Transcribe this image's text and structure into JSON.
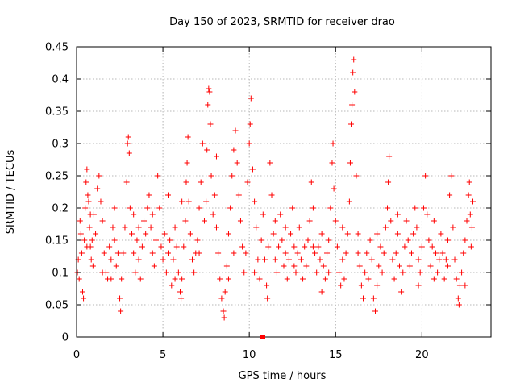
{
  "chart_data": {
    "type": "scatter",
    "title": "Day 150 of 2023, SRMTID for receiver drao",
    "xlabel": "GPS time / hours",
    "ylabel": "SRMTID / TECUs",
    "xlim": [
      0,
      24
    ],
    "ylim": [
      0,
      0.45
    ],
    "xticks": [
      0,
      5,
      10,
      15,
      20
    ],
    "xtick_labels": [
      "0",
      "5",
      "10",
      "15",
      "20"
    ],
    "yticks": [
      0,
      0.05,
      0.1,
      0.15,
      0.2,
      0.25,
      0.3,
      0.35,
      0.4,
      0.45
    ],
    "ytick_labels": [
      "0",
      "0.05",
      "0.1",
      "0.15",
      "0.2",
      "0.25",
      "0.3",
      "0.35",
      "0.4",
      "0.45"
    ],
    "grid": true,
    "marker": "+",
    "color": "#ff0000",
    "points": [
      [
        0.05,
        0.1
      ],
      [
        0.1,
        0.12
      ],
      [
        0.15,
        0.09
      ],
      [
        0.2,
        0.18
      ],
      [
        0.25,
        0.16
      ],
      [
        0.3,
        0.13
      ],
      [
        0.35,
        0.07
      ],
      [
        0.4,
        0.06
      ],
      [
        0.45,
        0.15
      ],
      [
        0.5,
        0.2
      ],
      [
        0.55,
        0.24
      ],
      [
        0.6,
        0.26
      ],
      [
        0.65,
        0.22
      ],
      [
        0.7,
        0.21
      ],
      [
        0.75,
        0.17
      ],
      [
        0.8,
        0.14
      ],
      [
        0.85,
        0.12
      ],
      [
        0.9,
        0.15
      ],
      [
        0.95,
        0.11
      ],
      [
        1.0,
        0.19
      ],
      [
        1.1,
        0.16
      ],
      [
        1.2,
        0.23
      ],
      [
        1.3,
        0.25
      ],
      [
        1.4,
        0.21
      ],
      [
        1.5,
        0.18
      ],
      [
        1.6,
        0.13
      ],
      [
        1.7,
        0.1
      ],
      [
        1.8,
        0.09
      ],
      [
        1.9,
        0.14
      ],
      [
        2.0,
        0.12
      ],
      [
        2.1,
        0.17
      ],
      [
        2.2,
        0.15
      ],
      [
        2.3,
        0.11
      ],
      [
        2.4,
        0.13
      ],
      [
        2.5,
        0.06
      ],
      [
        2.55,
        0.04
      ],
      [
        2.6,
        0.09
      ],
      [
        2.7,
        0.13
      ],
      [
        2.8,
        0.17
      ],
      [
        2.9,
        0.24
      ],
      [
        2.95,
        0.3
      ],
      [
        3.0,
        0.31
      ],
      [
        3.05,
        0.285
      ],
      [
        3.1,
        0.2
      ],
      [
        3.2,
        0.16
      ],
      [
        3.3,
        0.13
      ],
      [
        3.4,
        0.1
      ],
      [
        3.5,
        0.15
      ],
      [
        3.6,
        0.12
      ],
      [
        3.7,
        0.09
      ],
      [
        3.8,
        0.14
      ],
      [
        3.9,
        0.18
      ],
      [
        4.0,
        0.16
      ],
      [
        4.1,
        0.2
      ],
      [
        4.2,
        0.22
      ],
      [
        4.3,
        0.17
      ],
      [
        4.4,
        0.13
      ],
      [
        4.5,
        0.11
      ],
      [
        4.6,
        0.15
      ],
      [
        4.7,
        0.25
      ],
      [
        4.8,
        0.2
      ],
      [
        4.9,
        0.14
      ],
      [
        5.0,
        0.12
      ],
      [
        5.1,
        0.16
      ],
      [
        5.2,
        0.1
      ],
      [
        5.3,
        0.13
      ],
      [
        5.4,
        0.15
      ],
      [
        5.5,
        0.08
      ],
      [
        5.6,
        0.12
      ],
      [
        5.7,
        0.17
      ],
      [
        5.8,
        0.14
      ],
      [
        5.9,
        0.1
      ],
      [
        6.0,
        0.07
      ],
      [
        6.05,
        0.06
      ],
      [
        6.1,
        0.09
      ],
      [
        6.2,
        0.14
      ],
      [
        6.3,
        0.18
      ],
      [
        6.35,
        0.24
      ],
      [
        6.4,
        0.27
      ],
      [
        6.45,
        0.31
      ],
      [
        6.5,
        0.21
      ],
      [
        6.6,
        0.16
      ],
      [
        6.7,
        0.12
      ],
      [
        6.8,
        0.1
      ],
      [
        6.9,
        0.13
      ],
      [
        7.0,
        0.15
      ],
      [
        7.1,
        0.2
      ],
      [
        7.2,
        0.24
      ],
      [
        7.3,
        0.3
      ],
      [
        7.4,
        0.18
      ],
      [
        7.5,
        0.21
      ],
      [
        7.55,
        0.29
      ],
      [
        7.6,
        0.36
      ],
      [
        7.65,
        0.385
      ],
      [
        7.7,
        0.38
      ],
      [
        7.75,
        0.33
      ],
      [
        7.8,
        0.25
      ],
      [
        7.9,
        0.19
      ],
      [
        8.0,
        0.22
      ],
      [
        8.1,
        0.17
      ],
      [
        8.2,
        0.13
      ],
      [
        8.3,
        0.09
      ],
      [
        8.4,
        0.06
      ],
      [
        8.5,
        0.04
      ],
      [
        8.55,
        0.03
      ],
      [
        8.6,
        0.07
      ],
      [
        8.7,
        0.11
      ],
      [
        8.8,
        0.16
      ],
      [
        8.9,
        0.2
      ],
      [
        9.0,
        0.25
      ],
      [
        9.1,
        0.29
      ],
      [
        9.2,
        0.32
      ],
      [
        9.3,
        0.27
      ],
      [
        9.4,
        0.22
      ],
      [
        9.5,
        0.18
      ],
      [
        9.6,
        0.14
      ],
      [
        9.7,
        0.1
      ],
      [
        9.8,
        0.13
      ],
      [
        9.9,
        0.24
      ],
      [
        10.0,
        0.3
      ],
      [
        10.05,
        0.33
      ],
      [
        10.1,
        0.37
      ],
      [
        10.2,
        0.26
      ],
      [
        10.3,
        0.21
      ],
      [
        10.4,
        0.17
      ],
      [
        10.5,
        0.12
      ],
      [
        10.6,
        0.09
      ],
      [
        10.7,
        0.15
      ],
      [
        10.8,
        0.19
      ],
      [
        10.9,
        0.12
      ],
      [
        11.0,
        0.08
      ],
      [
        11.05,
        0.06
      ],
      [
        11.1,
        0.14
      ],
      [
        11.2,
        0.27
      ],
      [
        11.3,
        0.22
      ],
      [
        11.4,
        0.16
      ],
      [
        11.5,
        0.12
      ],
      [
        11.6,
        0.1
      ],
      [
        11.7,
        0.14
      ],
      [
        11.8,
        0.19
      ],
      [
        11.9,
        0.15
      ],
      [
        12.0,
        0.11
      ],
      [
        12.1,
        0.13
      ],
      [
        12.2,
        0.09
      ],
      [
        12.3,
        0.12
      ],
      [
        12.4,
        0.16
      ],
      [
        12.5,
        0.2
      ],
      [
        12.6,
        0.14
      ],
      [
        12.7,
        0.1
      ],
      [
        12.8,
        0.13
      ],
      [
        12.9,
        0.17
      ],
      [
        13.0,
        0.12
      ],
      [
        13.1,
        0.09
      ],
      [
        13.2,
        0.14
      ],
      [
        13.3,
        0.11
      ],
      [
        13.4,
        0.15
      ],
      [
        13.5,
        0.18
      ],
      [
        13.6,
        0.24
      ],
      [
        13.7,
        0.2
      ],
      [
        13.8,
        0.13
      ],
      [
        13.9,
        0.1
      ],
      [
        14.0,
        0.14
      ],
      [
        14.1,
        0.12
      ],
      [
        14.2,
        0.16
      ],
      [
        14.3,
        0.11
      ],
      [
        14.4,
        0.09
      ],
      [
        14.5,
        0.13
      ],
      [
        14.6,
        0.15
      ],
      [
        14.7,
        0.2
      ],
      [
        14.8,
        0.27
      ],
      [
        14.85,
        0.3
      ],
      [
        14.9,
        0.23
      ],
      [
        15.0,
        0.18
      ],
      [
        15.1,
        0.14
      ],
      [
        15.2,
        0.1
      ],
      [
        15.3,
        0.08
      ],
      [
        15.4,
        0.12
      ],
      [
        15.5,
        0.09
      ],
      [
        15.6,
        0.13
      ],
      [
        15.7,
        0.16
      ],
      [
        15.8,
        0.21
      ],
      [
        15.85,
        0.27
      ],
      [
        15.9,
        0.33
      ],
      [
        15.95,
        0.36
      ],
      [
        16.0,
        0.41
      ],
      [
        16.05,
        0.43
      ],
      [
        16.1,
        0.38
      ],
      [
        16.2,
        0.25
      ],
      [
        16.3,
        0.16
      ],
      [
        16.4,
        0.11
      ],
      [
        16.5,
        0.08
      ],
      [
        16.6,
        0.06
      ],
      [
        16.7,
        0.1
      ],
      [
        16.8,
        0.13
      ],
      [
        16.9,
        0.09
      ],
      [
        17.0,
        0.15
      ],
      [
        17.1,
        0.12
      ],
      [
        17.2,
        0.06
      ],
      [
        17.3,
        0.04
      ],
      [
        17.4,
        0.08
      ],
      [
        17.5,
        0.11
      ],
      [
        17.6,
        0.14
      ],
      [
        17.7,
        0.1
      ],
      [
        17.8,
        0.13
      ],
      [
        17.9,
        0.17
      ],
      [
        18.0,
        0.2
      ],
      [
        18.05,
        0.24
      ],
      [
        18.1,
        0.28
      ],
      [
        18.2,
        0.18
      ],
      [
        18.3,
        0.12
      ],
      [
        18.4,
        0.09
      ],
      [
        18.5,
        0.13
      ],
      [
        18.6,
        0.16
      ],
      [
        18.7,
        0.11
      ],
      [
        18.8,
        0.07
      ],
      [
        18.9,
        0.1
      ],
      [
        19.0,
        0.14
      ],
      [
        19.1,
        0.18
      ],
      [
        19.2,
        0.15
      ],
      [
        19.3,
        0.11
      ],
      [
        19.4,
        0.13
      ],
      [
        19.5,
        0.16
      ],
      [
        19.6,
        0.2
      ],
      [
        19.7,
        0.17
      ],
      [
        19.8,
        0.12
      ],
      [
        19.9,
        0.1
      ],
      [
        20.0,
        0.14
      ],
      [
        20.1,
        0.2
      ],
      [
        20.2,
        0.25
      ],
      [
        20.3,
        0.19
      ],
      [
        20.4,
        0.15
      ],
      [
        20.5,
        0.11
      ],
      [
        20.6,
        0.14
      ],
      [
        20.7,
        0.18
      ],
      [
        20.8,
        0.13
      ],
      [
        20.9,
        0.1
      ],
      [
        21.0,
        0.12
      ],
      [
        21.1,
        0.16
      ],
      [
        21.2,
        0.13
      ],
      [
        21.3,
        0.09
      ],
      [
        21.4,
        0.12
      ],
      [
        21.5,
        0.15
      ],
      [
        21.6,
        0.22
      ],
      [
        21.7,
        0.25
      ],
      [
        21.8,
        0.17
      ],
      [
        21.9,
        0.12
      ],
      [
        22.0,
        0.09
      ],
      [
        22.1,
        0.06
      ],
      [
        22.15,
        0.05
      ],
      [
        22.2,
        0.08
      ],
      [
        22.3,
        0.1
      ],
      [
        22.4,
        0.13
      ],
      [
        22.5,
        0.15
      ],
      [
        22.6,
        0.18
      ],
      [
        22.7,
        0.22
      ],
      [
        22.75,
        0.24
      ],
      [
        22.8,
        0.19
      ],
      [
        22.85,
        0.14
      ],
      [
        22.9,
        0.17
      ],
      [
        22.95,
        0.21
      ],
      [
        0.6,
        0.14
      ],
      [
        1.5,
        0.1
      ],
      [
        2.2,
        0.2
      ],
      [
        3.3,
        0.19
      ],
      [
        4.4,
        0.19
      ],
      [
        5.3,
        0.22
      ],
      [
        6.1,
        0.21
      ],
      [
        7.1,
        0.13
      ],
      [
        8.1,
        0.28
      ],
      [
        9.1,
        0.13
      ],
      [
        10.3,
        0.1
      ],
      [
        11.5,
        0.18
      ],
      [
        12.6,
        0.11
      ],
      [
        13.7,
        0.14
      ],
      [
        14.6,
        0.1
      ],
      [
        15.4,
        0.17
      ],
      [
        16.3,
        0.13
      ],
      [
        17.4,
        0.16
      ],
      [
        18.6,
        0.19
      ],
      [
        19.8,
        0.08
      ],
      [
        20.7,
        0.09
      ],
      [
        21.5,
        0.11
      ],
      [
        22.5,
        0.08
      ],
      [
        0.8,
        0.19
      ],
      [
        2.0,
        0.09
      ],
      [
        3.6,
        0.17
      ],
      [
        5.7,
        0.09
      ],
      [
        8.8,
        0.09
      ],
      [
        12.1,
        0.17
      ],
      [
        14.2,
        0.07
      ]
    ]
  }
}
